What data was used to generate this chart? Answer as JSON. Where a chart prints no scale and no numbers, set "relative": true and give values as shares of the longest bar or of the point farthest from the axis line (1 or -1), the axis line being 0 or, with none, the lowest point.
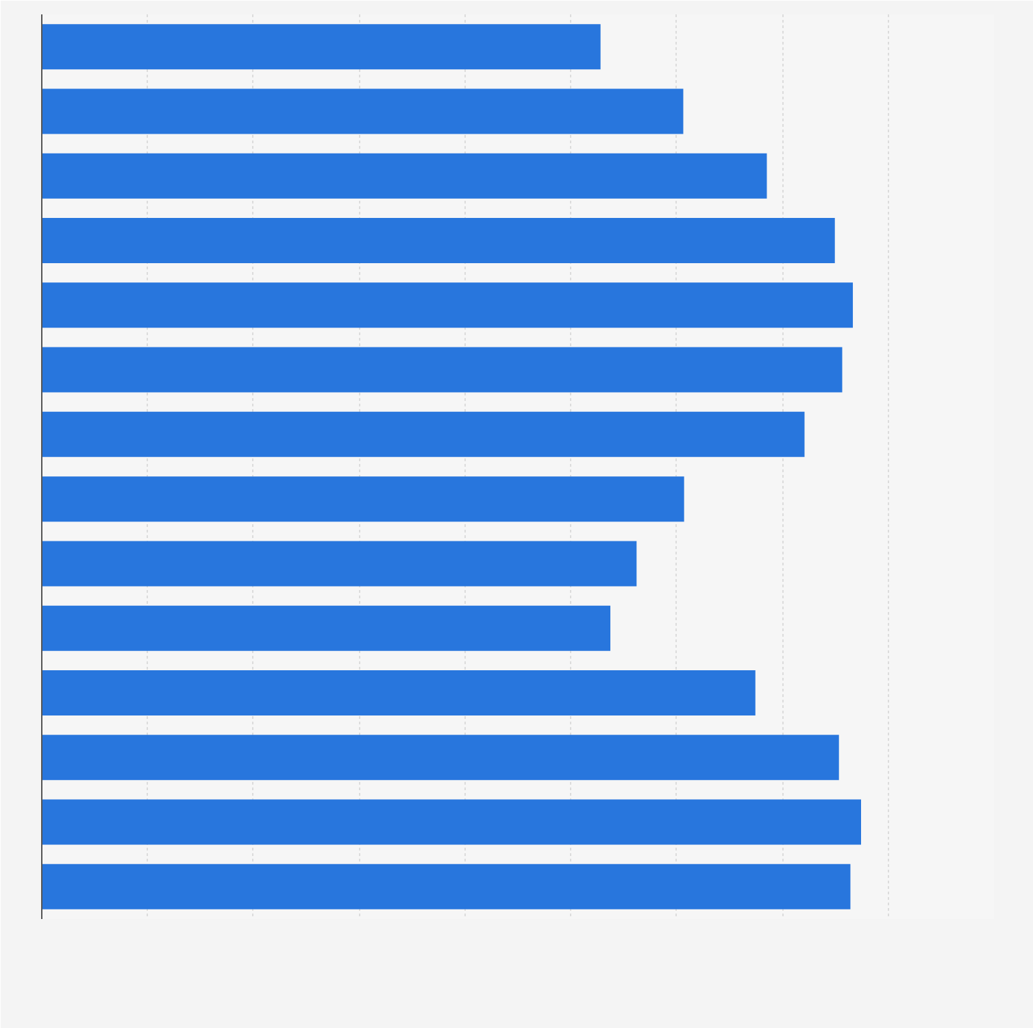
{
  "chart_data": {
    "type": "bar",
    "orientation": "horizontal",
    "relative": true,
    "grid": "x",
    "categories": [
      null,
      null,
      null,
      null,
      null,
      null,
      null,
      null,
      null,
      null,
      null,
      null,
      null,
      null
    ],
    "series": [
      {
        "color": "#2876dd",
        "values": [
          0.682,
          0.783,
          0.885,
          0.968,
          0.99,
          0.977,
          0.931,
          0.784,
          0.726,
          0.694,
          0.871,
          0.973,
          1,
          0.987
        ]
      }
    ]
  }
}
